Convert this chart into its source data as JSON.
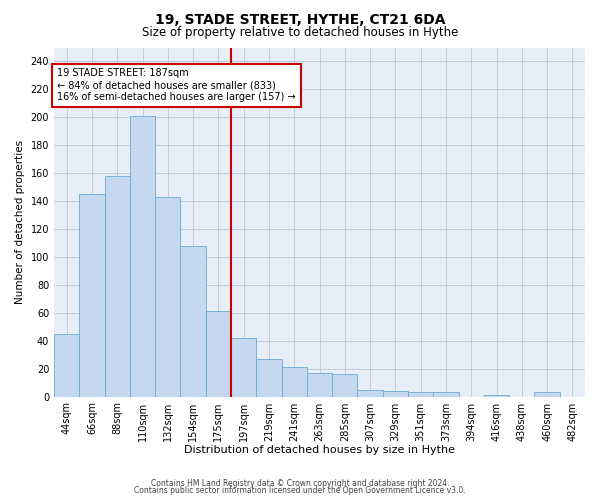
{
  "title": "19, STADE STREET, HYTHE, CT21 6DA",
  "subtitle": "Size of property relative to detached houses in Hythe",
  "xlabel": "Distribution of detached houses by size in Hythe",
  "ylabel": "Number of detached properties",
  "footer_line1": "Contains HM Land Registry data © Crown copyright and database right 2024.",
  "footer_line2": "Contains public sector information licensed under the Open Government Licence v3.0.",
  "annotation_line1": "19 STADE STREET: 187sqm",
  "annotation_line2": "← 84% of detached houses are smaller (833)",
  "annotation_line3": "16% of semi-detached houses are larger (157) →",
  "bar_labels": [
    "44sqm",
    "66sqm",
    "88sqm",
    "110sqm",
    "132sqm",
    "154sqm",
    "175sqm",
    "197sqm",
    "219sqm",
    "241sqm",
    "263sqm",
    "285sqm",
    "307sqm",
    "329sqm",
    "351sqm",
    "373sqm",
    "394sqm",
    "416sqm",
    "438sqm",
    "460sqm",
    "482sqm"
  ],
  "bar_values": [
    45,
    145,
    158,
    201,
    143,
    108,
    61,
    42,
    27,
    21,
    17,
    16,
    5,
    4,
    3,
    3,
    0,
    1,
    0,
    3,
    0
  ],
  "bar_color": "#c5d8f0",
  "bar_edge_color": "#6aaad4",
  "vline_bar_index": 7,
  "vline_color": "#cc0000",
  "annotation_box_color": "#cc0000",
  "bg_plot_color": "#e8eef8",
  "background_color": "#ffffff",
  "grid_color": "#b8c8d8",
  "ylim": [
    0,
    250
  ],
  "yticks": [
    0,
    20,
    40,
    60,
    80,
    100,
    120,
    140,
    160,
    180,
    200,
    220,
    240
  ],
  "title_fontsize": 10,
  "subtitle_fontsize": 8.5,
  "ylabel_fontsize": 7.5,
  "xlabel_fontsize": 8,
  "tick_fontsize": 7,
  "annotation_fontsize": 7,
  "footer_fontsize": 5.5
}
